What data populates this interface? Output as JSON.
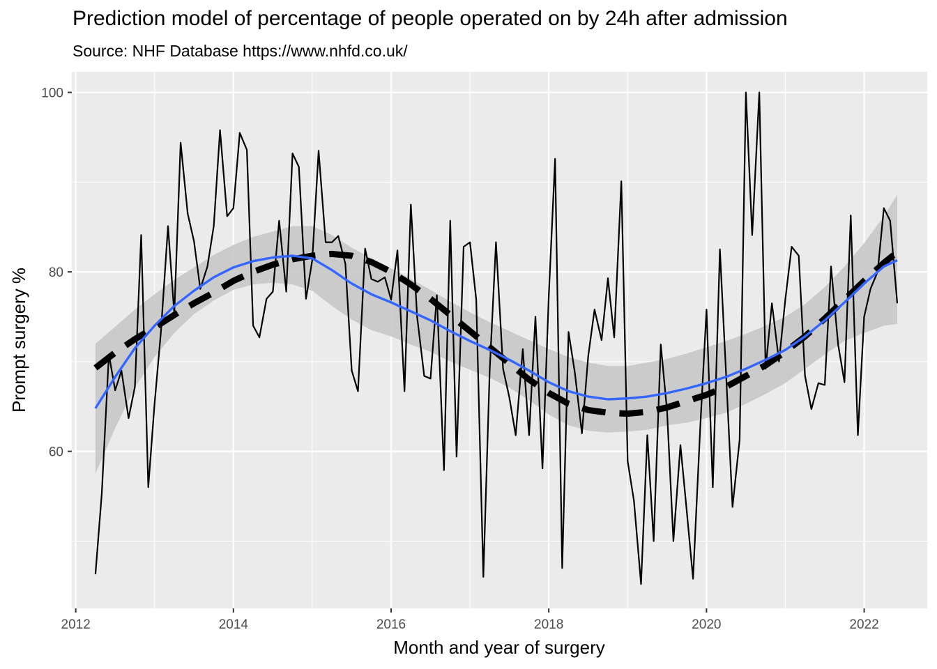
{
  "chart_data": {
    "type": "line",
    "title": "Prediction model of percentage of people operated on by 24h after admission",
    "subtitle": "Source: NHF Database https://www.nhfd.co.uk/",
    "xlabel": "Month and year of surgery",
    "ylabel": "Prompt surgery %",
    "xlim": [
      2011.95,
      2022.8
    ],
    "ylim": [
      42.5,
      102.3
    ],
    "x_ticks": [
      2012,
      2014,
      2016,
      2018,
      2020,
      2022
    ],
    "x_tick_labels": [
      "2012",
      "2014",
      "2016",
      "2018",
      "2020",
      "2022"
    ],
    "y_ticks": [
      60,
      80,
      100
    ],
    "y_tick_labels": [
      "60",
      "80",
      "100"
    ],
    "grid": true,
    "legend": "none",
    "colors": {
      "panel_background": "#EBEBEB",
      "grid": "#FFFFFF",
      "observed_line": "#000000",
      "smooth_line": "#3366FF",
      "confidence_band": "#C8C8C8",
      "prediction_line": "#000000"
    },
    "series": [
      {
        "style": "solid-thin-black",
        "points": [
          [
            2012.25,
            46.3
          ],
          [
            2012.33,
            55.3
          ],
          [
            2012.42,
            70.8
          ],
          [
            2012.5,
            66.8
          ],
          [
            2012.58,
            69.0
          ],
          [
            2012.67,
            63.7
          ],
          [
            2012.75,
            67.2
          ],
          [
            2012.83,
            84.1
          ],
          [
            2012.92,
            56.0
          ],
          [
            2013.0,
            65.3
          ],
          [
            2013.08,
            73.3
          ],
          [
            2013.17,
            85.1
          ],
          [
            2013.25,
            75.3
          ],
          [
            2013.33,
            94.4
          ],
          [
            2013.42,
            86.5
          ],
          [
            2013.5,
            83.4
          ],
          [
            2013.58,
            78.1
          ],
          [
            2013.67,
            80.6
          ],
          [
            2013.75,
            85.1
          ],
          [
            2013.83,
            95.8
          ],
          [
            2013.92,
            86.2
          ],
          [
            2014.0,
            87.1
          ],
          [
            2014.08,
            95.5
          ],
          [
            2014.17,
            93.6
          ],
          [
            2014.25,
            74.0
          ],
          [
            2014.33,
            72.7
          ],
          [
            2014.42,
            77.0
          ],
          [
            2014.5,
            77.8
          ],
          [
            2014.58,
            85.7
          ],
          [
            2014.67,
            77.8
          ],
          [
            2014.75,
            93.2
          ],
          [
            2014.83,
            91.7
          ],
          [
            2014.92,
            77.0
          ],
          [
            2015.0,
            81.3
          ],
          [
            2015.08,
            93.5
          ],
          [
            2015.17,
            83.3
          ],
          [
            2015.25,
            83.3
          ],
          [
            2015.33,
            84.0
          ],
          [
            2015.42,
            80.9
          ],
          [
            2015.5,
            69.0
          ],
          [
            2015.58,
            66.7
          ],
          [
            2015.67,
            82.6
          ],
          [
            2015.75,
            79.2
          ],
          [
            2015.83,
            78.9
          ],
          [
            2015.92,
            79.4
          ],
          [
            2016.0,
            76.9
          ],
          [
            2016.08,
            82.4
          ],
          [
            2016.17,
            66.7
          ],
          [
            2016.25,
            87.5
          ],
          [
            2016.33,
            75.0
          ],
          [
            2016.42,
            68.4
          ],
          [
            2016.5,
            68.1
          ],
          [
            2016.58,
            77.4
          ],
          [
            2016.67,
            57.9
          ],
          [
            2016.75,
            85.7
          ],
          [
            2016.83,
            59.4
          ],
          [
            2016.92,
            82.8
          ],
          [
            2017.0,
            83.3
          ],
          [
            2017.08,
            76.9
          ],
          [
            2017.17,
            46.0
          ],
          [
            2017.25,
            69.0
          ],
          [
            2017.33,
            83.3
          ],
          [
            2017.42,
            69.2
          ],
          [
            2017.5,
            66.0
          ],
          [
            2017.58,
            61.8
          ],
          [
            2017.67,
            71.4
          ],
          [
            2017.75,
            61.8
          ],
          [
            2017.83,
            75.0
          ],
          [
            2017.92,
            58.1
          ],
          [
            2018.0,
            77.4
          ],
          [
            2018.08,
            92.6
          ],
          [
            2018.17,
            47.0
          ],
          [
            2018.25,
            73.3
          ],
          [
            2018.33,
            68.8
          ],
          [
            2018.42,
            62.0
          ],
          [
            2018.5,
            70.6
          ],
          [
            2018.58,
            75.8
          ],
          [
            2018.67,
            72.4
          ],
          [
            2018.75,
            79.3
          ],
          [
            2018.83,
            72.7
          ],
          [
            2018.92,
            90.1
          ],
          [
            2019.0,
            58.9
          ],
          [
            2019.08,
            54.5
          ],
          [
            2019.17,
            45.2
          ],
          [
            2019.25,
            61.8
          ],
          [
            2019.33,
            50.0
          ],
          [
            2019.42,
            71.9
          ],
          [
            2019.5,
            64.5
          ],
          [
            2019.58,
            50.0
          ],
          [
            2019.67,
            60.7
          ],
          [
            2019.75,
            53.3
          ],
          [
            2019.83,
            45.8
          ],
          [
            2019.92,
            62.5
          ],
          [
            2020.0,
            75.8
          ],
          [
            2020.08,
            56.0
          ],
          [
            2020.17,
            82.5
          ],
          [
            2020.25,
            68.4
          ],
          [
            2020.33,
            53.8
          ],
          [
            2020.42,
            61.3
          ],
          [
            2020.5,
            100.0
          ],
          [
            2020.58,
            84.1
          ],
          [
            2020.67,
            100.0
          ],
          [
            2020.75,
            69.2
          ],
          [
            2020.83,
            76.5
          ],
          [
            2020.92,
            70.0
          ],
          [
            2021.0,
            76.9
          ],
          [
            2021.08,
            82.8
          ],
          [
            2021.17,
            81.8
          ],
          [
            2021.25,
            68.4
          ],
          [
            2021.33,
            64.7
          ],
          [
            2021.42,
            67.6
          ],
          [
            2021.5,
            67.4
          ],
          [
            2021.58,
            80.6
          ],
          [
            2021.67,
            71.9
          ],
          [
            2021.75,
            67.7
          ],
          [
            2021.83,
            86.3
          ],
          [
            2021.92,
            61.8
          ],
          [
            2022.0,
            75.0
          ],
          [
            2022.08,
            78.1
          ],
          [
            2022.17,
            80.0
          ],
          [
            2022.25,
            87.1
          ],
          [
            2022.33,
            85.7
          ],
          [
            2022.42,
            76.5
          ]
        ]
      },
      {
        "style": "smooth-blue",
        "points": [
          [
            2012.25,
            64.8
          ],
          [
            2012.5,
            68.3
          ],
          [
            2012.75,
            71.5
          ],
          [
            2013.0,
            74.0
          ],
          [
            2013.25,
            76.2
          ],
          [
            2013.5,
            77.9
          ],
          [
            2013.75,
            79.4
          ],
          [
            2014.0,
            80.5
          ],
          [
            2014.25,
            81.2
          ],
          [
            2014.5,
            81.6
          ],
          [
            2014.75,
            81.8
          ],
          [
            2015.0,
            81.5
          ],
          [
            2015.25,
            80.2
          ],
          [
            2015.5,
            78.7
          ],
          [
            2015.75,
            77.5
          ],
          [
            2016.0,
            76.6
          ],
          [
            2016.25,
            75.6
          ],
          [
            2016.5,
            74.6
          ],
          [
            2016.75,
            73.4
          ],
          [
            2017.0,
            72.3
          ],
          [
            2017.25,
            71.3
          ],
          [
            2017.5,
            70.2
          ],
          [
            2017.75,
            69.0
          ],
          [
            2018.0,
            67.7
          ],
          [
            2018.25,
            66.7
          ],
          [
            2018.5,
            66.1
          ],
          [
            2018.75,
            65.8
          ],
          [
            2019.0,
            65.9
          ],
          [
            2019.25,
            66.1
          ],
          [
            2019.5,
            66.5
          ],
          [
            2019.75,
            67.0
          ],
          [
            2020.0,
            67.6
          ],
          [
            2020.25,
            68.3
          ],
          [
            2020.5,
            69.2
          ],
          [
            2020.75,
            70.2
          ],
          [
            2021.0,
            71.3
          ],
          [
            2021.25,
            72.8
          ],
          [
            2021.5,
            74.6
          ],
          [
            2021.75,
            76.6
          ],
          [
            2022.0,
            78.7
          ],
          [
            2022.25,
            80.6
          ],
          [
            2022.42,
            81.3
          ]
        ],
        "band_upper": [
          72.0,
          73.9,
          75.8,
          77.5,
          79.1,
          80.5,
          81.9,
          83.0,
          83.9,
          84.5,
          85.1,
          85.1,
          84.1,
          82.7,
          81.5,
          80.4,
          79.2,
          78.0,
          76.7,
          75.5,
          74.4,
          73.4,
          72.4,
          71.4,
          70.5,
          69.9,
          69.5,
          69.5,
          69.9,
          70.3,
          70.9,
          71.6,
          72.3,
          73.1,
          74.0,
          75.0,
          76.4,
          78.3,
          80.6,
          83.2,
          86.2,
          88.6
        ],
        "band_lower": [
          57.5,
          62.6,
          67.1,
          70.5,
          73.2,
          75.3,
          76.8,
          78.0,
          78.6,
          78.8,
          78.6,
          77.9,
          76.2,
          74.7,
          73.5,
          72.8,
          71.9,
          71.1,
          70.0,
          69.1,
          68.2,
          67.1,
          65.7,
          64.1,
          62.9,
          62.3,
          62.1,
          62.2,
          62.4,
          62.9,
          63.2,
          63.7,
          64.3,
          65.3,
          66.4,
          67.6,
          69.2,
          70.8,
          72.3,
          73.2,
          74.0,
          74.2
        ]
      },
      {
        "style": "dashed-thick-black",
        "points": [
          [
            2012.25,
            69.3
          ],
          [
            2012.5,
            71.0
          ],
          [
            2012.75,
            72.5
          ],
          [
            2013.0,
            73.8
          ],
          [
            2013.25,
            75.2
          ],
          [
            2013.5,
            76.5
          ],
          [
            2013.75,
            77.7
          ],
          [
            2014.0,
            79.0
          ],
          [
            2014.25,
            80.0
          ],
          [
            2014.5,
            80.8
          ],
          [
            2014.75,
            81.4
          ],
          [
            2015.0,
            81.8
          ],
          [
            2015.25,
            82.0
          ],
          [
            2015.5,
            81.8
          ],
          [
            2015.75,
            81.1
          ],
          [
            2016.0,
            80.0
          ],
          [
            2016.25,
            78.6
          ],
          [
            2016.5,
            77.0
          ],
          [
            2016.75,
            75.2
          ],
          [
            2017.0,
            73.4
          ],
          [
            2017.25,
            71.6
          ],
          [
            2017.5,
            69.8
          ],
          [
            2017.75,
            68.0
          ],
          [
            2018.0,
            66.5
          ],
          [
            2018.25,
            65.3
          ],
          [
            2018.5,
            64.6
          ],
          [
            2018.75,
            64.3
          ],
          [
            2019.0,
            64.2
          ],
          [
            2019.25,
            64.4
          ],
          [
            2019.5,
            64.9
          ],
          [
            2019.75,
            65.6
          ],
          [
            2020.0,
            66.3
          ],
          [
            2020.25,
            67.2
          ],
          [
            2020.5,
            68.4
          ],
          [
            2020.75,
            69.6
          ],
          [
            2021.0,
            71.1
          ],
          [
            2021.25,
            72.8
          ],
          [
            2021.5,
            74.8
          ],
          [
            2021.75,
            76.9
          ],
          [
            2022.0,
            79.0
          ],
          [
            2022.25,
            81.0
          ],
          [
            2022.42,
            82.2
          ]
        ]
      }
    ]
  }
}
